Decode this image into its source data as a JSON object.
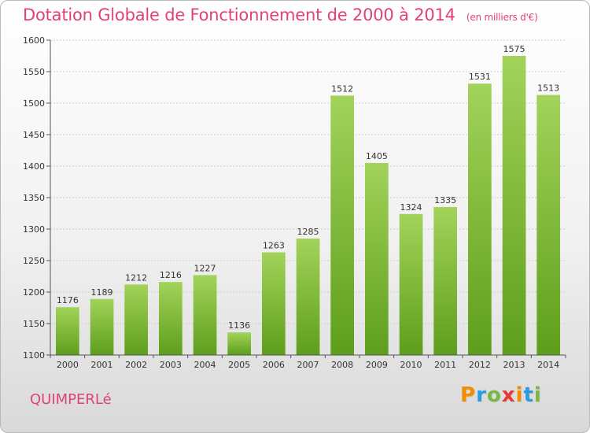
{
  "title": "Dotation Globale de Fonctionnement de 2000 à 2014",
  "unit": "(en milliers d'€)",
  "city": "QUIMPERLé",
  "brand": {
    "letters": [
      "P",
      "r",
      "o",
      "x",
      "i",
      "t",
      "i"
    ],
    "colors": [
      "#f28c00",
      "#2b9be0",
      "#7ab648",
      "#e53935",
      "#f28c00",
      "#2b9be0",
      "#7ab648"
    ]
  },
  "chart_data": {
    "type": "bar",
    "categories": [
      "2000",
      "2001",
      "2002",
      "2003",
      "2004",
      "2005",
      "2006",
      "2007",
      "2008",
      "2009",
      "2010",
      "2011",
      "2012",
      "2013",
      "2014"
    ],
    "values": [
      1176,
      1189,
      1212,
      1216,
      1227,
      1136,
      1263,
      1285,
      1512,
      1405,
      1324,
      1335,
      1531,
      1575,
      1513
    ],
    "ylim": [
      1100,
      1600
    ],
    "yticks": [
      1100,
      1150,
      1200,
      1250,
      1300,
      1350,
      1400,
      1450,
      1500,
      1550,
      1600
    ],
    "grid": true,
    "bar_color": "#7ab82f"
  }
}
